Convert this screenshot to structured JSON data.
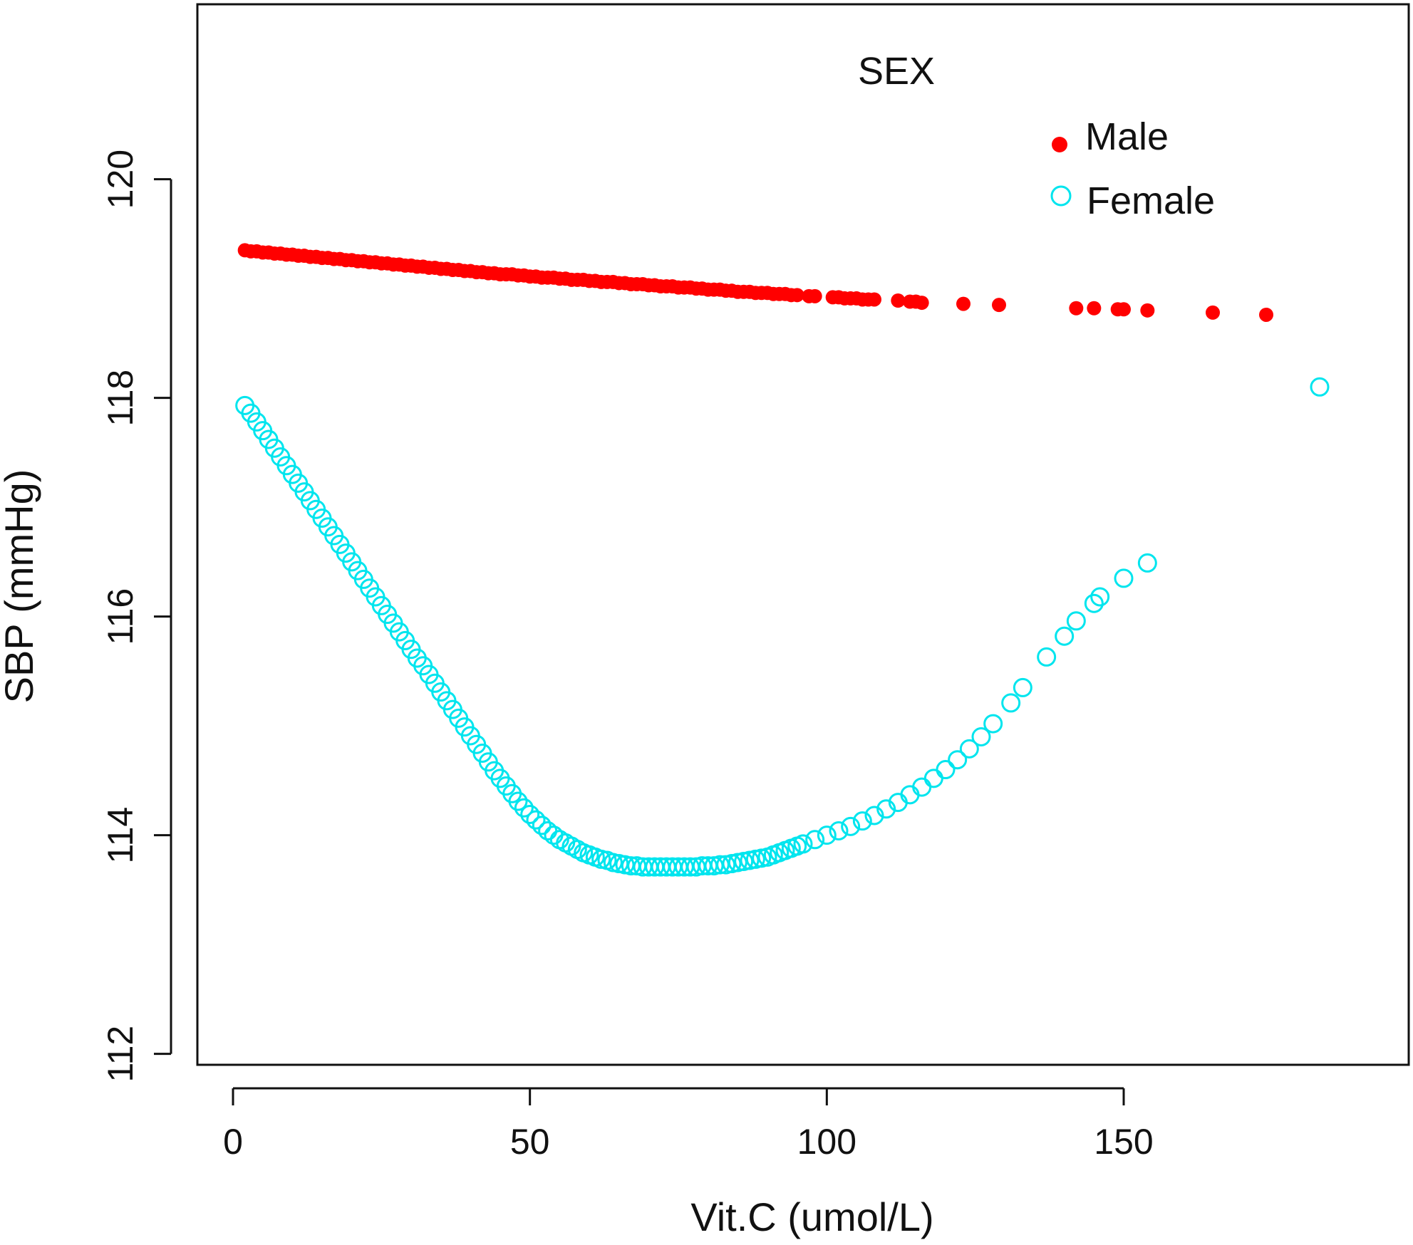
{
  "chart_data": {
    "type": "scatter",
    "title": "",
    "xlabel": "Vit.C (umol/L)",
    "ylabel": "SBP (mmHg)",
    "xlim": [
      -6,
      198
    ],
    "ylim": [
      111.9,
      121.6
    ],
    "xticks": [
      0,
      50,
      100,
      150
    ],
    "yticks": [
      112,
      114,
      116,
      118,
      120
    ],
    "xtick_labels": [
      "0",
      "50",
      "100",
      "150"
    ],
    "ytick_labels": [
      "112",
      "114",
      "116",
      "118",
      "120"
    ],
    "grid": false,
    "legend": {
      "title": "SEX",
      "placement": "top-right",
      "entries": [
        {
          "name": "Male",
          "color": "#ff0000",
          "marker": "filled-circle"
        },
        {
          "name": "Female",
          "color": "#00e5ee",
          "marker": "open-circle"
        }
      ]
    },
    "series": [
      {
        "name": "Male",
        "color": "#ff0000",
        "marker": "filled-circle",
        "points": [
          [
            2,
            119.35
          ],
          [
            3,
            119.34
          ],
          [
            4,
            119.34
          ],
          [
            5,
            119.33
          ],
          [
            6,
            119.33
          ],
          [
            7,
            119.32
          ],
          [
            8,
            119.32
          ],
          [
            9,
            119.31
          ],
          [
            10,
            119.31
          ],
          [
            11,
            119.3
          ],
          [
            12,
            119.3
          ],
          [
            13,
            119.29
          ],
          [
            14,
            119.29
          ],
          [
            15,
            119.28
          ],
          [
            16,
            119.28
          ],
          [
            17,
            119.27
          ],
          [
            18,
            119.27
          ],
          [
            19,
            119.26
          ],
          [
            20,
            119.26
          ],
          [
            21,
            119.25
          ],
          [
            22,
            119.25
          ],
          [
            23,
            119.24
          ],
          [
            24,
            119.24
          ],
          [
            25,
            119.23
          ],
          [
            26,
            119.23
          ],
          [
            27,
            119.22
          ],
          [
            28,
            119.22
          ],
          [
            29,
            119.21
          ],
          [
            30,
            119.21
          ],
          [
            31,
            119.2
          ],
          [
            32,
            119.2
          ],
          [
            33,
            119.19
          ],
          [
            34,
            119.19
          ],
          [
            35,
            119.18
          ],
          [
            36,
            119.18
          ],
          [
            37,
            119.17
          ],
          [
            38,
            119.17
          ],
          [
            39,
            119.16
          ],
          [
            40,
            119.16
          ],
          [
            41,
            119.15
          ],
          [
            42,
            119.15
          ],
          [
            43,
            119.14
          ],
          [
            44,
            119.14
          ],
          [
            45,
            119.13
          ],
          [
            46,
            119.13
          ],
          [
            47,
            119.13
          ],
          [
            48,
            119.12
          ],
          [
            49,
            119.12
          ],
          [
            50,
            119.11
          ],
          [
            51,
            119.11
          ],
          [
            52,
            119.1
          ],
          [
            53,
            119.1
          ],
          [
            54,
            119.1
          ],
          [
            55,
            119.09
          ],
          [
            56,
            119.09
          ],
          [
            57,
            119.08
          ],
          [
            58,
            119.08
          ],
          [
            59,
            119.08
          ],
          [
            60,
            119.07
          ],
          [
            61,
            119.07
          ],
          [
            62,
            119.06
          ],
          [
            63,
            119.06
          ],
          [
            64,
            119.06
          ],
          [
            65,
            119.05
          ],
          [
            66,
            119.05
          ],
          [
            67,
            119.04
          ],
          [
            68,
            119.04
          ],
          [
            69,
            119.04
          ],
          [
            70,
            119.03
          ],
          [
            71,
            119.03
          ],
          [
            72,
            119.02
          ],
          [
            73,
            119.02
          ],
          [
            74,
            119.02
          ],
          [
            75,
            119.01
          ],
          [
            76,
            119.01
          ],
          [
            77,
            119.01
          ],
          [
            78,
            119.0
          ],
          [
            79,
            119.0
          ],
          [
            80,
            118.99
          ],
          [
            81,
            118.99
          ],
          [
            82,
            118.99
          ],
          [
            83,
            118.98
          ],
          [
            84,
            118.98
          ],
          [
            85,
            118.97
          ],
          [
            86,
            118.97
          ],
          [
            87,
            118.97
          ],
          [
            88,
            118.96
          ],
          [
            89,
            118.96
          ],
          [
            90,
            118.96
          ],
          [
            91,
            118.95
          ],
          [
            92,
            118.95
          ],
          [
            93,
            118.95
          ],
          [
            94,
            118.94
          ],
          [
            95,
            118.94
          ],
          [
            97,
            118.93
          ],
          [
            98,
            118.93
          ],
          [
            101,
            118.92
          ],
          [
            102,
            118.92
          ],
          [
            103,
            118.91
          ],
          [
            104,
            118.91
          ],
          [
            105,
            118.91
          ],
          [
            106,
            118.9
          ],
          [
            107,
            118.9
          ],
          [
            108,
            118.9
          ],
          [
            112,
            118.89
          ],
          [
            114,
            118.88
          ],
          [
            115,
            118.88
          ],
          [
            116,
            118.87
          ],
          [
            123,
            118.86
          ],
          [
            129,
            118.85
          ],
          [
            142,
            118.82
          ],
          [
            145,
            118.82
          ],
          [
            149,
            118.81
          ],
          [
            150,
            118.81
          ],
          [
            154,
            118.8
          ],
          [
            165,
            118.78
          ],
          [
            174,
            118.76
          ]
        ]
      },
      {
        "name": "Female",
        "color": "#00e5ee",
        "marker": "open-circle",
        "points": [
          [
            2,
            117.93
          ],
          [
            3,
            117.86
          ],
          [
            4,
            117.78
          ],
          [
            5,
            117.7
          ],
          [
            6,
            117.62
          ],
          [
            7,
            117.54
          ],
          [
            8,
            117.46
          ],
          [
            9,
            117.38
          ],
          [
            10,
            117.3
          ],
          [
            11,
            117.22
          ],
          [
            12,
            117.14
          ],
          [
            13,
            117.06
          ],
          [
            14,
            116.98
          ],
          [
            15,
            116.9
          ],
          [
            16,
            116.82
          ],
          [
            17,
            116.74
          ],
          [
            18,
            116.66
          ],
          [
            19,
            116.58
          ],
          [
            20,
            116.5
          ],
          [
            21,
            116.42
          ],
          [
            22,
            116.34
          ],
          [
            23,
            116.26
          ],
          [
            24,
            116.18
          ],
          [
            25,
            116.1
          ],
          [
            26,
            116.02
          ],
          [
            27,
            115.94
          ],
          [
            28,
            115.86
          ],
          [
            29,
            115.78
          ],
          [
            30,
            115.7
          ],
          [
            31,
            115.62
          ],
          [
            32,
            115.55
          ],
          [
            33,
            115.47
          ],
          [
            34,
            115.39
          ],
          [
            35,
            115.31
          ],
          [
            36,
            115.23
          ],
          [
            37,
            115.15
          ],
          [
            38,
            115.07
          ],
          [
            39,
            114.99
          ],
          [
            40,
            114.91
          ],
          [
            41,
            114.83
          ],
          [
            42,
            114.75
          ],
          [
            43,
            114.67
          ],
          [
            44,
            114.59
          ],
          [
            45,
            114.52
          ],
          [
            46,
            114.45
          ],
          [
            47,
            114.38
          ],
          [
            48,
            114.31
          ],
          [
            49,
            114.25
          ],
          [
            50,
            114.19
          ],
          [
            51,
            114.14
          ],
          [
            52,
            114.09
          ],
          [
            53,
            114.04
          ],
          [
            54,
            114.0
          ],
          [
            55,
            113.96
          ],
          [
            56,
            113.93
          ],
          [
            57,
            113.9
          ],
          [
            58,
            113.87
          ],
          [
            59,
            113.84
          ],
          [
            60,
            113.82
          ],
          [
            61,
            113.8
          ],
          [
            62,
            113.78
          ],
          [
            63,
            113.77
          ],
          [
            64,
            113.75
          ],
          [
            65,
            113.74
          ],
          [
            66,
            113.73
          ],
          [
            67,
            113.72
          ],
          [
            68,
            113.72
          ],
          [
            69,
            113.71
          ],
          [
            70,
            113.71
          ],
          [
            71,
            113.71
          ],
          [
            72,
            113.71
          ],
          [
            73,
            113.71
          ],
          [
            74,
            113.71
          ],
          [
            75,
            113.71
          ],
          [
            76,
            113.71
          ],
          [
            77,
            113.71
          ],
          [
            78,
            113.71
          ],
          [
            79,
            113.72
          ],
          [
            80,
            113.72
          ],
          [
            81,
            113.72
          ],
          [
            82,
            113.73
          ],
          [
            83,
            113.73
          ],
          [
            84,
            113.74
          ],
          [
            85,
            113.75
          ],
          [
            86,
            113.76
          ],
          [
            87,
            113.77
          ],
          [
            88,
            113.78
          ],
          [
            89,
            113.79
          ],
          [
            90,
            113.8
          ],
          [
            91,
            113.82
          ],
          [
            92,
            113.84
          ],
          [
            93,
            113.86
          ],
          [
            94,
            113.88
          ],
          [
            95,
            113.9
          ],
          [
            96,
            113.92
          ],
          [
            98,
            113.96
          ],
          [
            100,
            114.0
          ],
          [
            102,
            114.04
          ],
          [
            104,
            114.08
          ],
          [
            106,
            114.13
          ],
          [
            108,
            114.18
          ],
          [
            110,
            114.24
          ],
          [
            112,
            114.3
          ],
          [
            114,
            114.37
          ],
          [
            116,
            114.44
          ],
          [
            118,
            114.52
          ],
          [
            120,
            114.6
          ],
          [
            122,
            114.69
          ],
          [
            124,
            114.79
          ],
          [
            126,
            114.9
          ],
          [
            128,
            115.02
          ],
          [
            131,
            115.21
          ],
          [
            133,
            115.35
          ],
          [
            137,
            115.63
          ],
          [
            140,
            115.82
          ],
          [
            142,
            115.96
          ],
          [
            145,
            116.12
          ],
          [
            146,
            116.18
          ],
          [
            150,
            116.35
          ],
          [
            154,
            116.49
          ],
          [
            183,
            118.1
          ]
        ]
      }
    ]
  }
}
